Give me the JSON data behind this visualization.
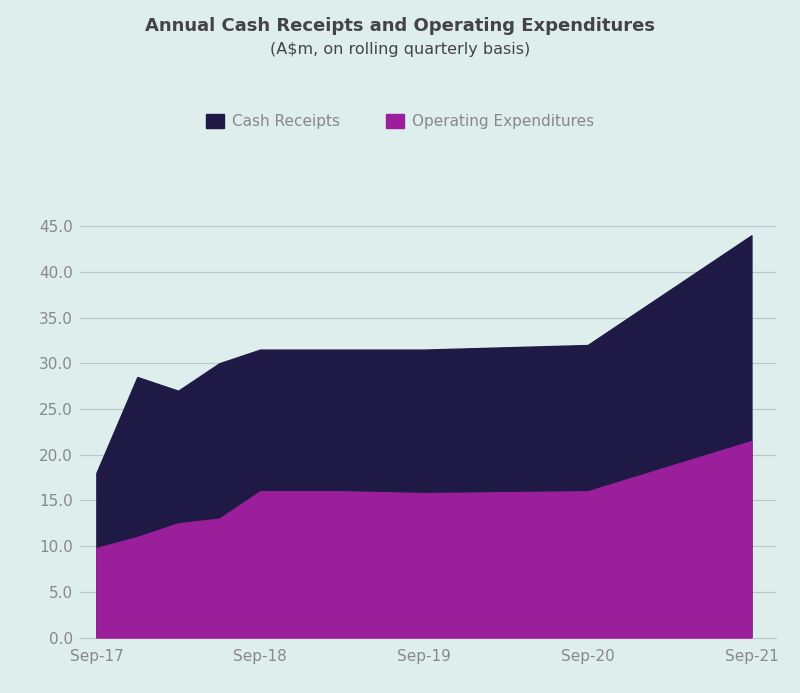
{
  "title_line1": "Annual Cash Receipts and Operating Expenditures",
  "title_line2": "(A$m, on rolling quarterly basis)",
  "background_color": "#deeeed",
  "plot_background_color": "#deeeed",
  "x_labels": [
    "Sep-17",
    "Sep-18",
    "Sep-19",
    "Sep-20",
    "Sep-21"
  ],
  "cash_receipts": [
    18.0,
    28.5,
    27.0,
    30.0,
    31.5,
    31.5,
    31.5,
    32.0,
    44.0
  ],
  "operating_expenditures": [
    9.8,
    11.0,
    12.5,
    13.0,
    16.0,
    16.0,
    15.8,
    16.0,
    21.5
  ],
  "x_data": [
    0,
    0.25,
    0.5,
    0.75,
    1.0,
    1.5,
    2.0,
    3.0,
    4.0
  ],
  "x_tick_positions": [
    0,
    1,
    2,
    3,
    4
  ],
  "cash_receipts_color": "#1e1a45",
  "operating_expenditures_color": "#9b1f9b",
  "legend_cash_receipts": "Cash Receipts",
  "legend_operating_expenditures": "Operating Expenditures",
  "ylim": [
    0,
    47
  ],
  "xlim": [
    -0.1,
    4.15
  ],
  "yticks": [
    0.0,
    5.0,
    10.0,
    15.0,
    20.0,
    25.0,
    30.0,
    35.0,
    40.0,
    45.0
  ],
  "grid_color": "#b8c8c8",
  "axis_label_color": "#888888",
  "title_color": "#444444",
  "title_fontsize": 13,
  "subtitle_fontsize": 11.5,
  "tick_fontsize": 11,
  "legend_fontsize": 11
}
